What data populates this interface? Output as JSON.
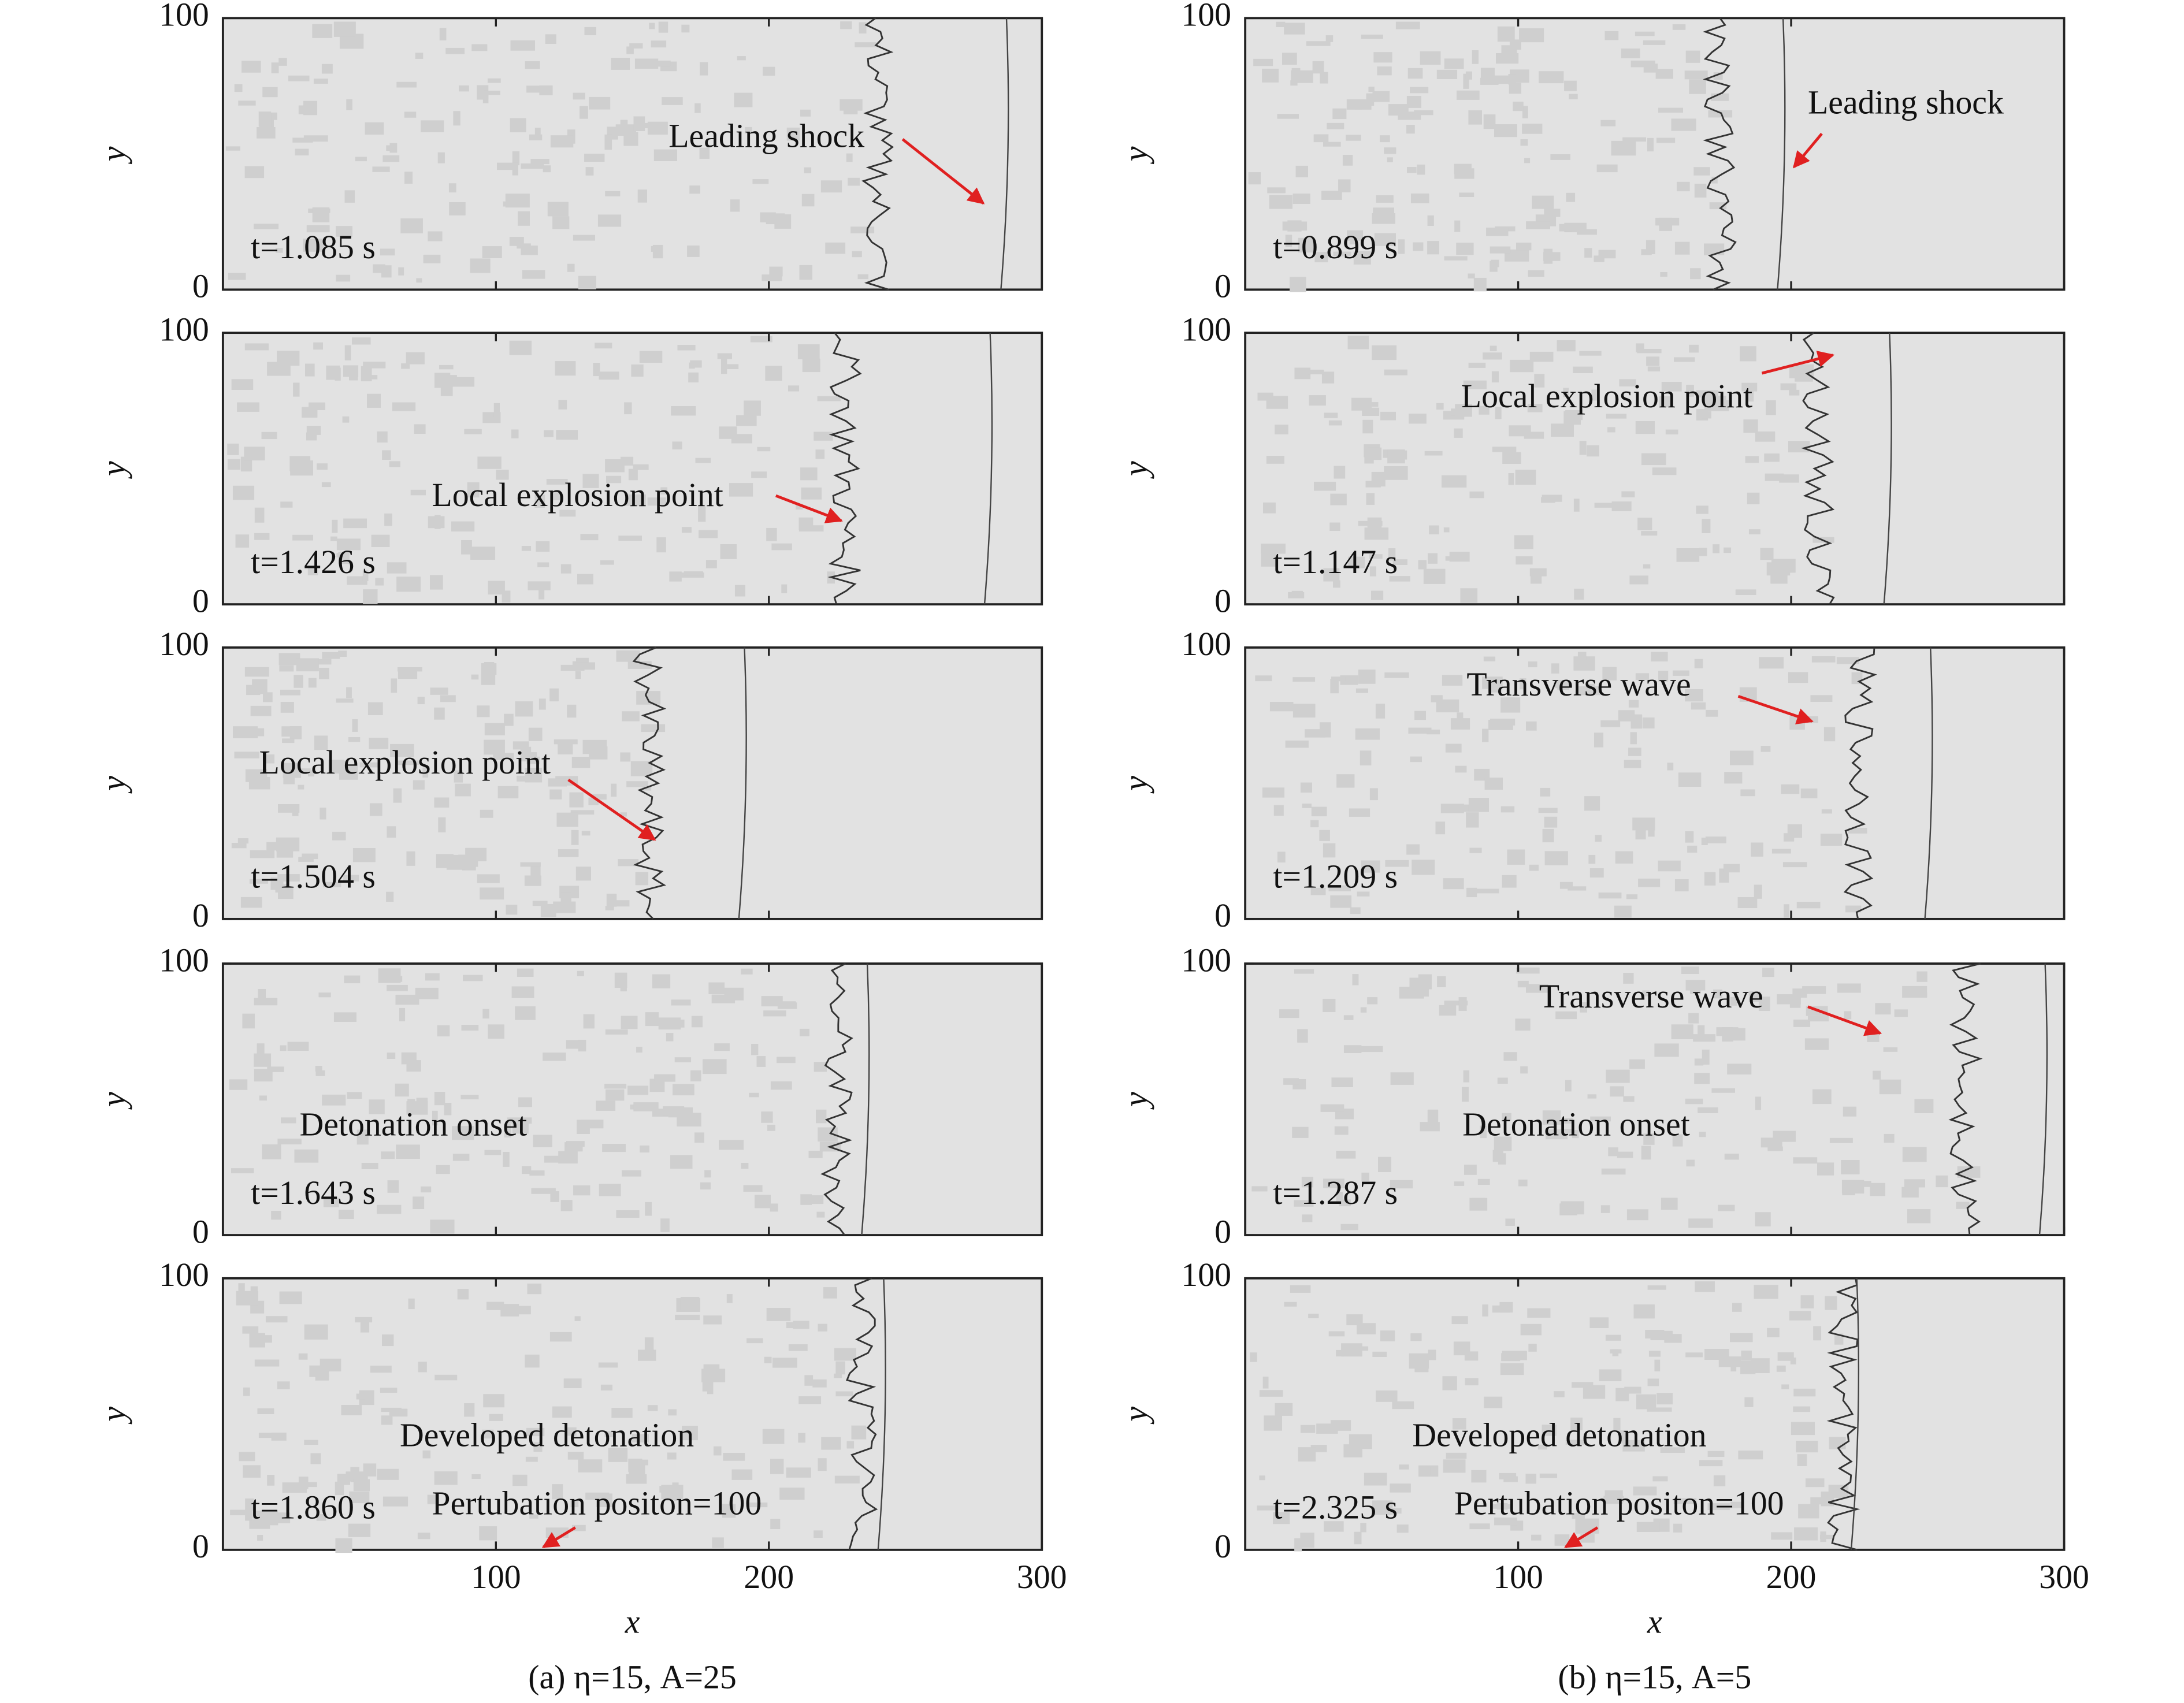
{
  "chart_data": [
    {
      "type": "field",
      "ylabel": "y",
      "xlim": [
        0,
        300
      ],
      "ylim": [
        0,
        100
      ],
      "xticks": [
        100,
        200,
        300
      ],
      "yticks": [
        0,
        100
      ],
      "time": "t=1.085 s",
      "annotations": [
        "Leading shock"
      ]
    },
    {
      "type": "field",
      "ylabel": "y",
      "xlim": [
        0,
        300
      ],
      "ylim": [
        0,
        100
      ],
      "xticks": [
        100,
        200,
        300
      ],
      "yticks": [
        0,
        100
      ],
      "time": "t=1.426 s",
      "annotations": [
        "Local explosion point"
      ]
    },
    {
      "type": "field",
      "ylabel": "y",
      "xlim": [
        0,
        300
      ],
      "ylim": [
        0,
        100
      ],
      "xticks": [
        100,
        200,
        300
      ],
      "yticks": [
        0,
        100
      ],
      "time": "t=1.504 s",
      "annotations": [
        "Local explosion point"
      ]
    },
    {
      "type": "field",
      "ylabel": "y",
      "xlim": [
        0,
        300
      ],
      "ylim": [
        0,
        100
      ],
      "xticks": [
        100,
        200,
        300
      ],
      "yticks": [
        0,
        100
      ],
      "time": "t=1.643 s",
      "annotations": [
        "Detonation onset"
      ]
    },
    {
      "type": "field",
      "ylabel": "y",
      "xlim": [
        0,
        300
      ],
      "ylim": [
        0,
        100
      ],
      "xticks": [
        100,
        200,
        300
      ],
      "yticks": [
        0,
        100
      ],
      "time": "t=1.860 s",
      "annotations": [
        "Developed detonation",
        "Pertubation positon=100"
      ],
      "xlabel": "x",
      "caption": "(a) η=15, A=25"
    },
    {
      "type": "field",
      "ylabel": "y",
      "xlim": [
        0,
        300
      ],
      "ylim": [
        0,
        100
      ],
      "xticks": [
        100,
        200,
        300
      ],
      "yticks": [
        0,
        100
      ],
      "time": "t=0.899 s",
      "annotations": [
        "Leading shock"
      ]
    },
    {
      "type": "field",
      "ylabel": "y",
      "xlim": [
        0,
        300
      ],
      "ylim": [
        0,
        100
      ],
      "xticks": [
        100,
        200,
        300
      ],
      "yticks": [
        0,
        100
      ],
      "time": "t=1.147 s",
      "annotations": [
        "Local explosion point"
      ]
    },
    {
      "type": "field",
      "ylabel": "y",
      "xlim": [
        0,
        300
      ],
      "ylim": [
        0,
        100
      ],
      "xticks": [
        100,
        200,
        300
      ],
      "yticks": [
        0,
        100
      ],
      "time": "t=1.209 s",
      "annotations": [
        "Transverse wave"
      ]
    },
    {
      "type": "field",
      "ylabel": "y",
      "xlim": [
        0,
        300
      ],
      "ylim": [
        0,
        100
      ],
      "xticks": [
        100,
        200,
        300
      ],
      "yticks": [
        0,
        100
      ],
      "time": "t=1.287 s",
      "annotations": [
        "Transverse wave",
        "Detonation onset"
      ]
    },
    {
      "type": "field",
      "ylabel": "y",
      "xlim": [
        0,
        300
      ],
      "ylim": [
        0,
        100
      ],
      "xticks": [
        100,
        200,
        300
      ],
      "yticks": [
        0,
        100
      ],
      "time": "t=2.325 s",
      "annotations": [
        "Developed detonation",
        "Pertubation positon=100"
      ],
      "xlabel": "x",
      "caption": "(b) η=15, A=5"
    }
  ]
}
